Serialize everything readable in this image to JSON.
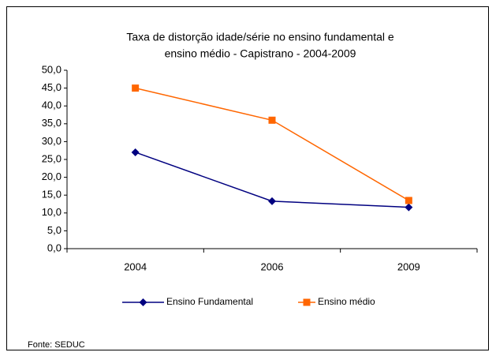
{
  "chart_data": {
    "type": "line",
    "title": [
      "Taxa de distorção idade/série no ensino fundamental e",
      "ensino médio - Capistrano - 2004-2009"
    ],
    "categories": [
      "2004",
      "2006",
      "2009"
    ],
    "series": [
      {
        "name": "Ensino Fundamental",
        "color": "#000080",
        "marker": "diamond",
        "values": [
          27.0,
          13.3,
          11.6
        ]
      },
      {
        "name": "Ensino médio",
        "color": "#ff6600",
        "marker": "square",
        "values": [
          45.0,
          36.0,
          13.5
        ]
      }
    ],
    "ylim": [
      0,
      50
    ],
    "yticks": [
      {
        "value": 0,
        "label": "0,0"
      },
      {
        "value": 5,
        "label": "5,0"
      },
      {
        "value": 10,
        "label": "10,0"
      },
      {
        "value": 15,
        "label": "15,0"
      },
      {
        "value": 20,
        "label": "20,0"
      },
      {
        "value": 25,
        "label": "25,0"
      },
      {
        "value": 30,
        "label": "30,0"
      },
      {
        "value": 35,
        "label": "35,0"
      },
      {
        "value": 40,
        "label": "40,0"
      },
      {
        "value": 45,
        "label": "45,0"
      },
      {
        "value": 50,
        "label": "50,0"
      }
    ],
    "grid": false,
    "legend": "bottom",
    "source": "Fonte: SEDUC"
  }
}
